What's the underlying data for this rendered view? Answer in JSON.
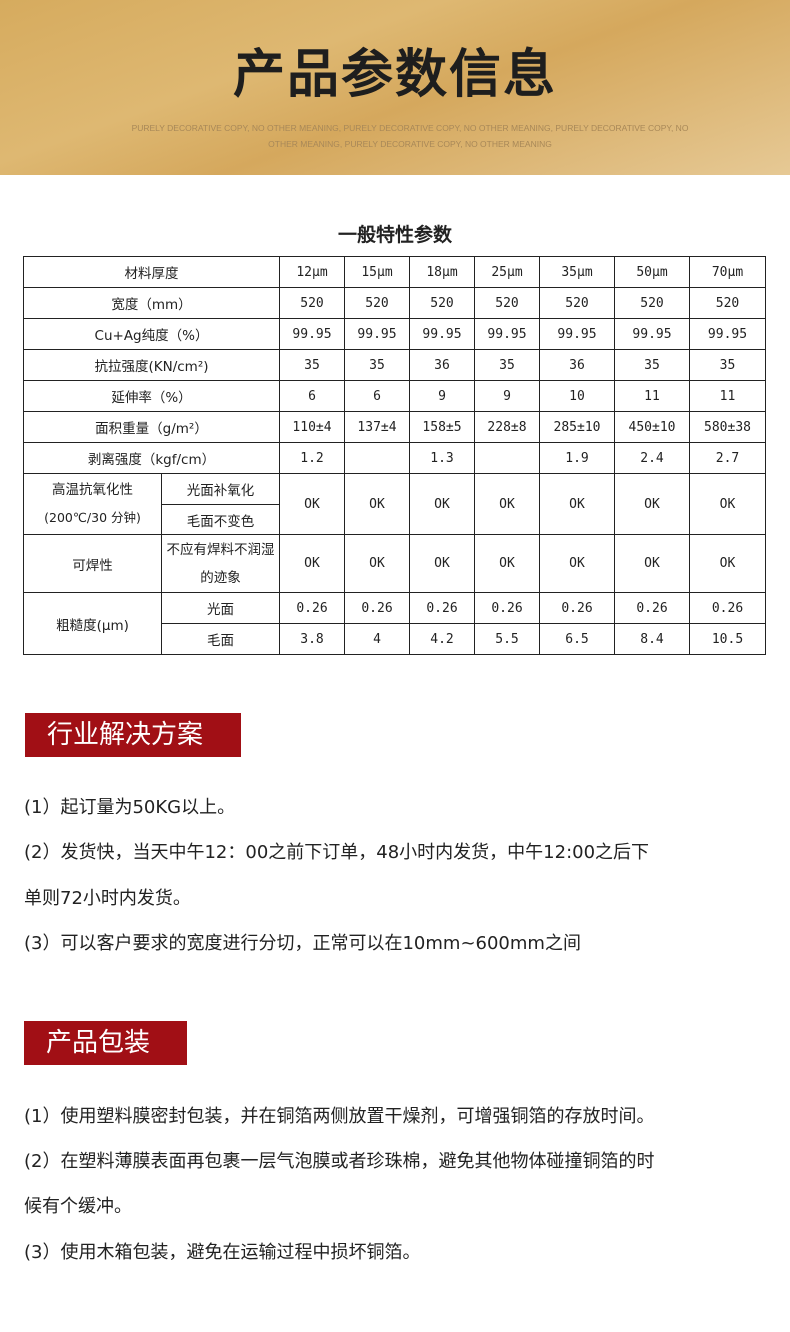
{
  "banner": {
    "title": "产品参数信息",
    "subtitle": "PURELY DECORATIVE COPY, NO OTHER MEANING, PURELY DECORATIVE COPY, NO OTHER MEANING, PURELY DECORATIVE COPY, NO OTHER MEANING, PURELY DECORATIVE COPY, NO OTHER MEANING"
  },
  "table": {
    "title": "一般特性参数",
    "header": {
      "label": "材料厚度",
      "cols": [
        "12μm",
        "15μm",
        "18μm",
        "25μm",
        "35μm",
        "50μm",
        "70μm"
      ]
    },
    "rows": [
      {
        "label": "宽度（mm）",
        "values": [
          "520",
          "520",
          "520",
          "520",
          "520",
          "520",
          "520"
        ]
      },
      {
        "label": "Cu+Ag纯度（%）",
        "values": [
          "99.95",
          "99.95",
          "99.95",
          "99.95",
          "99.95",
          "99.95",
          "99.95"
        ]
      },
      {
        "label": "抗拉强度(KN/cm²)",
        "values": [
          "35",
          "35",
          "36",
          "35",
          "36",
          "35",
          "35"
        ]
      },
      {
        "label": "延伸率（%）",
        "values": [
          "6",
          "6",
          "9",
          "9",
          "10",
          "11",
          "11"
        ]
      },
      {
        "label": "面积重量（g/m²）",
        "values": [
          "110±4",
          "137±4",
          "158±5",
          "228±8",
          "285±10",
          "450±10",
          "580±38"
        ]
      },
      {
        "label": "剥离强度（kgf/cm）",
        "values": [
          "1.2",
          "",
          "1.3",
          "",
          "1.9",
          "2.4",
          "2.7"
        ]
      }
    ],
    "oxidation": {
      "label1": "高温抗氧化性",
      "label2": "(200℃/30 分钟)",
      "sub1": "光面补氧化",
      "sub2": "毛面不变色",
      "values": [
        "OK",
        "OK",
        "OK",
        "OK",
        "OK",
        "OK",
        "OK"
      ]
    },
    "solder": {
      "label": "可焊性",
      "sub": "不应有焊料不润湿的迹象",
      "values": [
        "OK",
        "OK",
        "OK",
        "OK",
        "OK",
        "OK",
        "OK"
      ]
    },
    "roughness": {
      "label": "粗糙度(μm)",
      "shiny": {
        "label": "光面",
        "values": [
          "0.26",
          "0.26",
          "0.26",
          "0.26",
          "0.26",
          "0.26",
          "0.26"
        ]
      },
      "matte": {
        "label": "毛面",
        "values": [
          "3.8",
          "4",
          "4.2",
          "5.5",
          "6.5",
          "8.4",
          "10.5"
        ]
      }
    }
  },
  "solutions": {
    "title": "行业解决方案",
    "items": [
      "(1）起订量为50KG以上。",
      "(2）发货快，当天中午12：00之前下订单，48小时内发货，中午12:00之后下",
      "单则72小时内发货。",
      "(3）可以客户要求的宽度进行分切，正常可以在10mm~600mm之间"
    ]
  },
  "packaging": {
    "title": "产品包装",
    "items": [
      "(1）使用塑料膜密封包装，并在铜箔两侧放置干燥剂，可增强铜箔的存放时间。",
      "(2）在塑料薄膜表面再包裹一层气泡膜或者珍珠棉，避免其他物体碰撞铜箔的时",
      "候有个缓冲。",
      "(3）使用木箱包装，避免在运输过程中损坏铜箔。"
    ]
  },
  "colors": {
    "accent": "#a10f15",
    "banner": "#d6ab5e"
  }
}
